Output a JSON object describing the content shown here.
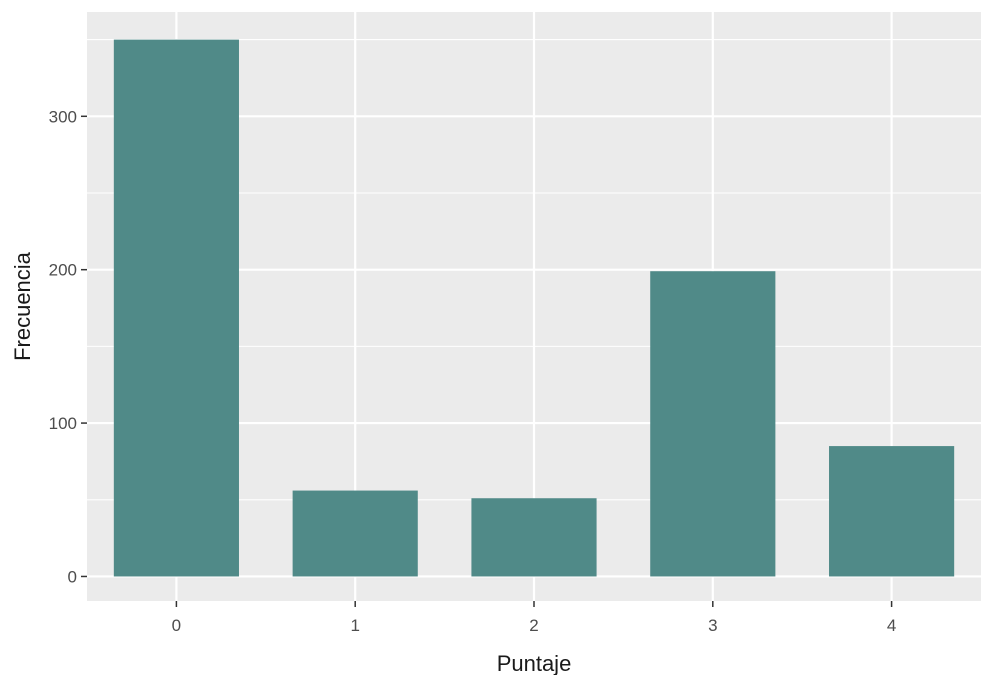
{
  "chart_data": {
    "type": "bar",
    "title": "",
    "xlabel": "Puntaje",
    "ylabel": "Frecuencia",
    "categories": [
      "0",
      "1",
      "2",
      "3",
      "4"
    ],
    "values": [
      350,
      56,
      51,
      199,
      85
    ],
    "ylim": [
      -16,
      368
    ],
    "y_ticks": [
      0,
      100,
      200,
      300
    ],
    "y_tick_labels": [
      "0",
      "100",
      "200",
      "300"
    ],
    "grid": true,
    "legend": "none",
    "colors": {
      "panel_background": "#EBEBEB",
      "grid_major": "#FFFFFF",
      "bar_fill": "#508A88",
      "tick_text": "#4D4D4D",
      "axis_title_text": "#1A1A1A"
    }
  }
}
